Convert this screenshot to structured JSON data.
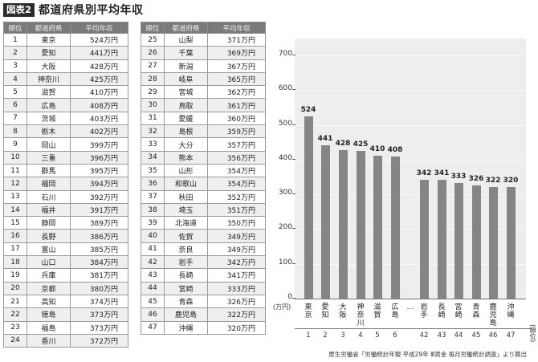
{
  "title": {
    "badge": "図表2",
    "text": "都道府県別平均年収"
  },
  "table": {
    "headers": [
      "順位",
      "都道府県",
      "平均年収"
    ],
    "left": [
      {
        "rank": "1",
        "pref": "東京",
        "income": "524万円"
      },
      {
        "rank": "2",
        "pref": "愛知",
        "income": "441万円"
      },
      {
        "rank": "3",
        "pref": "大阪",
        "income": "428万円"
      },
      {
        "rank": "4",
        "pref": "神奈川",
        "income": "425万円"
      },
      {
        "rank": "5",
        "pref": "滋賀",
        "income": "410万円"
      },
      {
        "rank": "6",
        "pref": "広島",
        "income": "408万円"
      },
      {
        "rank": "7",
        "pref": "茨城",
        "income": "403万円"
      },
      {
        "rank": "8",
        "pref": "栃木",
        "income": "402万円"
      },
      {
        "rank": "9",
        "pref": "岡山",
        "income": "399万円"
      },
      {
        "rank": "10",
        "pref": "三重",
        "income": "396万円"
      },
      {
        "rank": "11",
        "pref": "群馬",
        "income": "395万円"
      },
      {
        "rank": "12",
        "pref": "福岡",
        "income": "394万円"
      },
      {
        "rank": "13",
        "pref": "石川",
        "income": "392万円"
      },
      {
        "rank": "14",
        "pref": "福井",
        "income": "391万円"
      },
      {
        "rank": "15",
        "pref": "静岡",
        "income": "389万円"
      },
      {
        "rank": "16",
        "pref": "長野",
        "income": "386万円"
      },
      {
        "rank": "17",
        "pref": "富山",
        "income": "385万円"
      },
      {
        "rank": "18",
        "pref": "山口",
        "income": "384万円"
      },
      {
        "rank": "19",
        "pref": "兵庫",
        "income": "381万円"
      },
      {
        "rank": "20",
        "pref": "京都",
        "income": "380万円"
      },
      {
        "rank": "21",
        "pref": "高知",
        "income": "374万円"
      },
      {
        "rank": "22",
        "pref": "徳島",
        "income": "373万円"
      },
      {
        "rank": "23",
        "pref": "福島",
        "income": "373万円"
      },
      {
        "rank": "24",
        "pref": "香川",
        "income": "372万円"
      }
    ],
    "right": [
      {
        "rank": "25",
        "pref": "山梨",
        "income": "371万円"
      },
      {
        "rank": "26",
        "pref": "千葉",
        "income": "369万円"
      },
      {
        "rank": "27",
        "pref": "新潟",
        "income": "367万円"
      },
      {
        "rank": "28",
        "pref": "岐阜",
        "income": "365万円"
      },
      {
        "rank": "29",
        "pref": "宮城",
        "income": "362万円"
      },
      {
        "rank": "30",
        "pref": "鳥取",
        "income": "361万円"
      },
      {
        "rank": "31",
        "pref": "愛媛",
        "income": "360万円"
      },
      {
        "rank": "32",
        "pref": "島根",
        "income": "359万円"
      },
      {
        "rank": "33",
        "pref": "大分",
        "income": "357万円"
      },
      {
        "rank": "34",
        "pref": "熊本",
        "income": "356万円"
      },
      {
        "rank": "35",
        "pref": "山形",
        "income": "354万円"
      },
      {
        "rank": "36",
        "pref": "和歌山",
        "income": "354万円"
      },
      {
        "rank": "37",
        "pref": "秋田",
        "income": "352万円"
      },
      {
        "rank": "38",
        "pref": "埼玉",
        "income": "351万円"
      },
      {
        "rank": "39",
        "pref": "北海道",
        "income": "350万円"
      },
      {
        "rank": "40",
        "pref": "佐賀",
        "income": "349万円"
      },
      {
        "rank": "41",
        "pref": "奈良",
        "income": "349万円"
      },
      {
        "rank": "42",
        "pref": "岩手",
        "income": "342万円"
      },
      {
        "rank": "43",
        "pref": "長崎",
        "income": "341万円"
      },
      {
        "rank": "44",
        "pref": "宮崎",
        "income": "333万円"
      },
      {
        "rank": "45",
        "pref": "青森",
        "income": "326万円"
      },
      {
        "rank": "46",
        "pref": "鹿児島",
        "income": "322万円"
      },
      {
        "rank": "47",
        "pref": "沖縄",
        "income": "320万円"
      }
    ]
  },
  "chart_data": {
    "type": "bar",
    "title": "都道府県別平均年収",
    "categories": [
      "東京",
      "愛知",
      "大阪",
      "神奈川",
      "滋賀",
      "広島",
      "岩手",
      "長崎",
      "宮崎",
      "青森",
      "鹿児島",
      "沖縄"
    ],
    "ranks": [
      "1",
      "2",
      "3",
      "4",
      "5",
      "6",
      "42",
      "43",
      "44",
      "45",
      "46",
      "47"
    ],
    "values": [
      524,
      441,
      428,
      425,
      410,
      408,
      342,
      341,
      333,
      326,
      322,
      320
    ],
    "gap_marker": "…",
    "ylabel": "(万円)",
    "xlabel": "(順位)",
    "yticks": [
      "0",
      "100",
      "200",
      "300",
      "400",
      "500",
      "600",
      "700"
    ],
    "ylim": [
      0,
      750
    ],
    "grid": true,
    "bar_color": "#858585",
    "background_color": "#eeeeee"
  },
  "source": "厚生労働省「労働統計年報 平成29年 Ⅲ賃金 毎月労働統計調査」より算出"
}
